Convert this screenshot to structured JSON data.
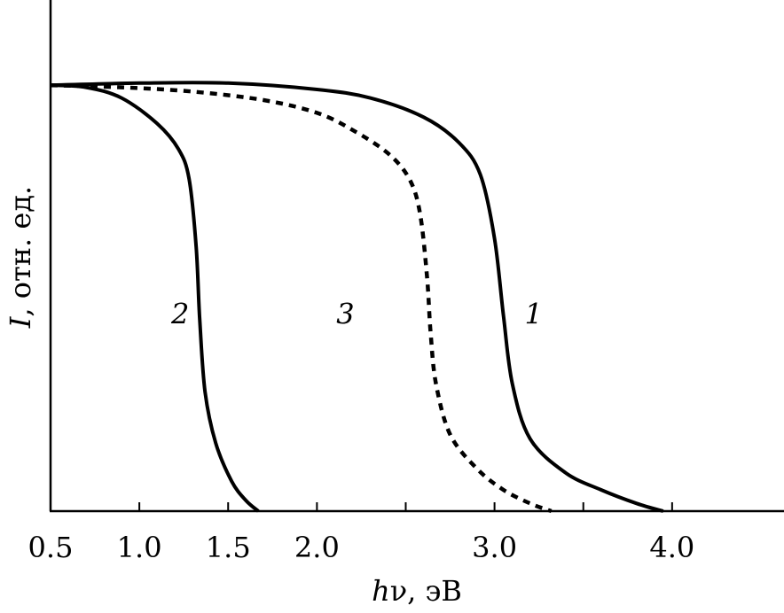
{
  "chart_data": {
    "type": "line",
    "xlabel": {
      "italic": "h",
      "rest": "ν, эВ"
    },
    "ylabel": {
      "italic": "I",
      "rest": ", отн. ед."
    },
    "xlim": [
      0.5,
      4.63
    ],
    "ylim": [
      0,
      1.2
    ],
    "x_ticks": [
      0.5,
      1.0,
      1.5,
      2.0,
      2.5,
      3.0,
      3.5,
      4.0
    ],
    "x_tick_labels": [
      "0.5",
      "1.0",
      "1.5",
      "2.0",
      "",
      "3.0",
      "",
      "4.0"
    ],
    "y_ticks_shown": false,
    "grid": false,
    "series": [
      {
        "name": "1",
        "style": "solid",
        "label_at": [
          3.22,
          0.44
        ],
        "points": [
          [
            0.5,
            1.0
          ],
          [
            1.0,
            1.005
          ],
          [
            1.5,
            1.005
          ],
          [
            2.0,
            0.99
          ],
          [
            2.3,
            0.97
          ],
          [
            2.6,
            0.925
          ],
          [
            2.8,
            0.865
          ],
          [
            2.92,
            0.79
          ],
          [
            3.0,
            0.64
          ],
          [
            3.05,
            0.46
          ],
          [
            3.1,
            0.3
          ],
          [
            3.2,
            0.17
          ],
          [
            3.4,
            0.09
          ],
          [
            3.6,
            0.05
          ],
          [
            3.8,
            0.018
          ],
          [
            3.95,
            0.0
          ]
        ]
      },
      {
        "name": "2",
        "style": "solid",
        "label_at": [
          1.23,
          0.44
        ],
        "points": [
          [
            0.5,
            1.0
          ],
          [
            0.7,
            0.995
          ],
          [
            0.9,
            0.97
          ],
          [
            1.1,
            0.91
          ],
          [
            1.22,
            0.85
          ],
          [
            1.28,
            0.78
          ],
          [
            1.32,
            0.62
          ],
          [
            1.34,
            0.45
          ],
          [
            1.37,
            0.28
          ],
          [
            1.43,
            0.16
          ],
          [
            1.52,
            0.07
          ],
          [
            1.6,
            0.025
          ],
          [
            1.67,
            0.0
          ]
        ]
      },
      {
        "name": "3",
        "style": "dotted",
        "label_at": [
          2.16,
          0.44
        ],
        "points": [
          [
            0.5,
            1.0
          ],
          [
            0.9,
            0.995
          ],
          [
            1.3,
            0.985
          ],
          [
            1.7,
            0.965
          ],
          [
            2.0,
            0.935
          ],
          [
            2.2,
            0.895
          ],
          [
            2.4,
            0.84
          ],
          [
            2.52,
            0.78
          ],
          [
            2.58,
            0.7
          ],
          [
            2.62,
            0.55
          ],
          [
            2.64,
            0.42
          ],
          [
            2.67,
            0.3
          ],
          [
            2.75,
            0.18
          ],
          [
            2.9,
            0.1
          ],
          [
            3.05,
            0.05
          ],
          [
            3.2,
            0.018
          ],
          [
            3.32,
            0.0
          ]
        ]
      }
    ]
  }
}
